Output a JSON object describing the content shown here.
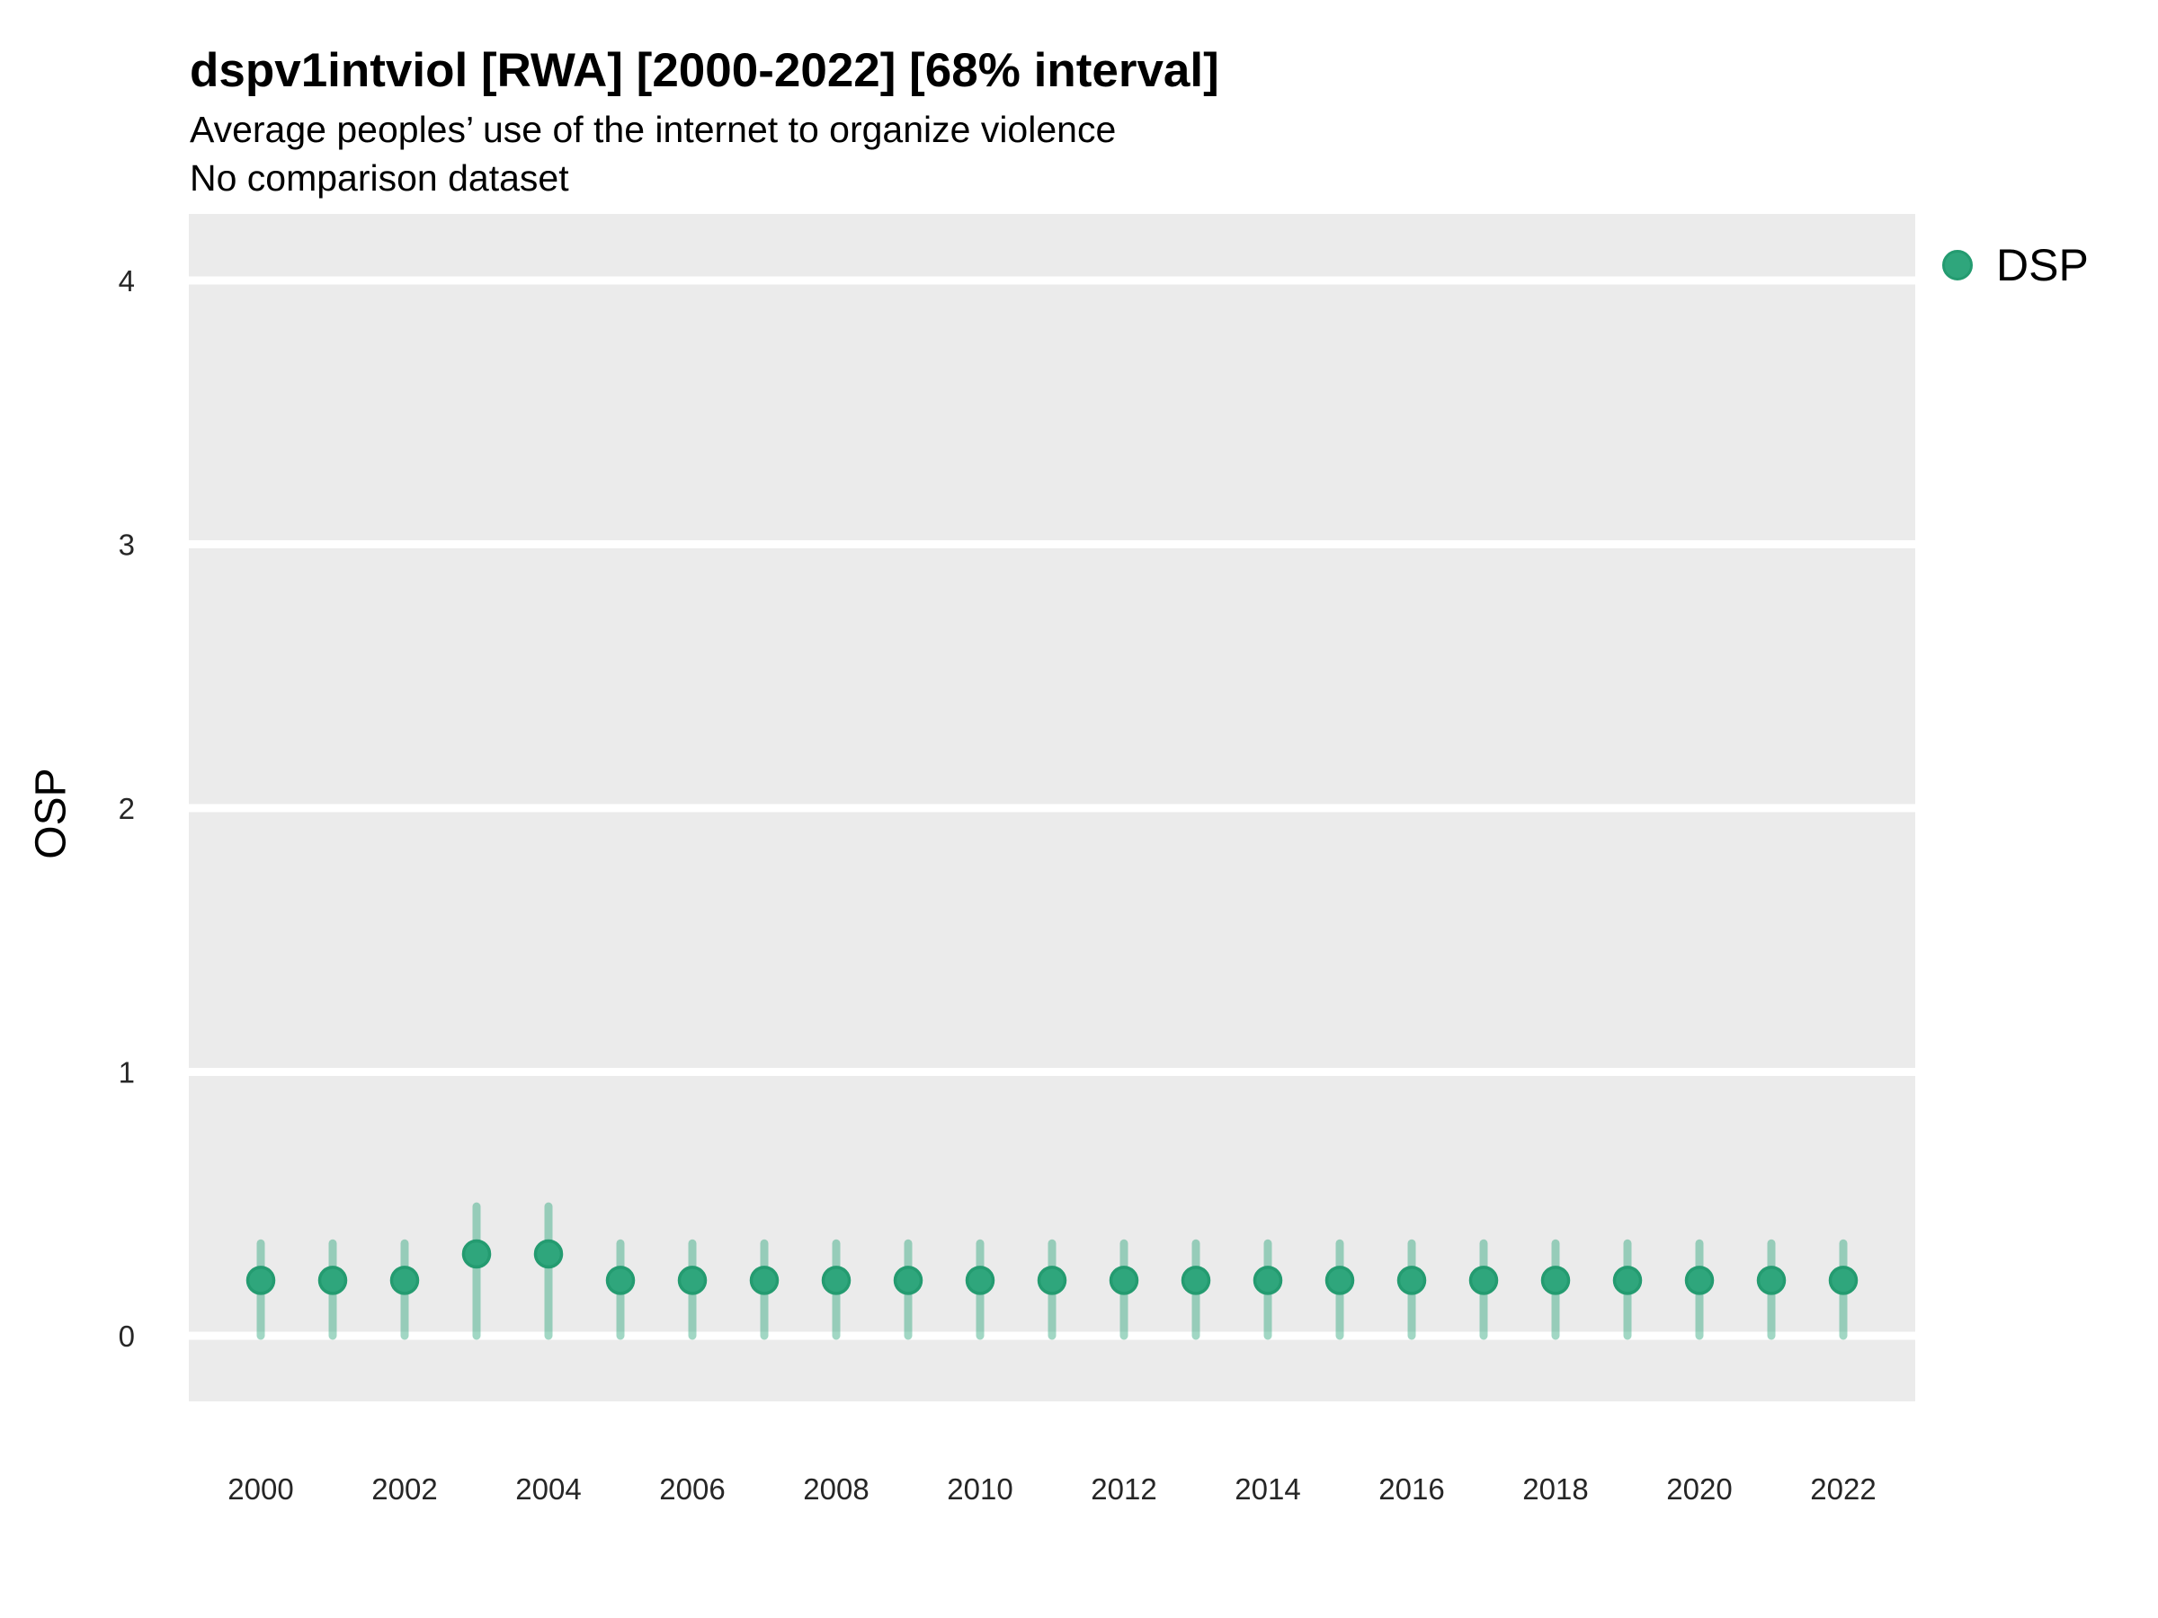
{
  "header": {
    "title": "dspv1intviol [RWA] [2000-2022] [68% interval]",
    "subtitle1": "Average peoples’ use of the internet to organize violence",
    "subtitle2": "No comparison dataset"
  },
  "legend": {
    "position": "right",
    "items": [
      {
        "label": "DSP",
        "color": "#2fa67c"
      }
    ]
  },
  "colors": {
    "point_fill": "#2fa67c",
    "point_stroke": "#249b70",
    "interval_bar": "rgba(47,166,124,0.45)",
    "panel_bg": "#ebebeb",
    "gridline": "#ffffff",
    "axis_text": "#262626",
    "text": "#000000"
  },
  "chart_data": {
    "type": "scatter",
    "subtype": "pointrange",
    "title": "dspv1intviol [RWA] [2000-2022] [68% interval]",
    "subtitle": "Average peoples’ use of the internet to organize violence",
    "note": "No comparison dataset",
    "xlabel": "",
    "ylabel": "OSP",
    "ylim": [
      -0.25,
      4.25
    ],
    "y_ticks": [
      0,
      1,
      2,
      3,
      4
    ],
    "x_ticks": [
      2000,
      2002,
      2004,
      2006,
      2008,
      2010,
      2012,
      2014,
      2016,
      2018,
      2020,
      2022
    ],
    "grid": "major-horizontal-only",
    "legend_position": "right",
    "interval_level": "68%",
    "series": [
      {
        "name": "DSP",
        "x": [
          2000,
          2001,
          2002,
          2003,
          2004,
          2005,
          2006,
          2007,
          2008,
          2009,
          2010,
          2011,
          2012,
          2013,
          2014,
          2015,
          2016,
          2017,
          2018,
          2019,
          2020,
          2021,
          2022
        ],
        "estimate": [
          0.21,
          0.21,
          0.21,
          0.31,
          0.31,
          0.21,
          0.21,
          0.21,
          0.21,
          0.21,
          0.21,
          0.21,
          0.21,
          0.21,
          0.21,
          0.21,
          0.21,
          0.21,
          0.21,
          0.21,
          0.21,
          0.21,
          0.21
        ],
        "lo": [
          0.0,
          0.0,
          0.0,
          0.0,
          0.0,
          0.0,
          0.0,
          0.0,
          0.0,
          0.0,
          0.0,
          0.0,
          0.0,
          0.0,
          0.0,
          0.0,
          0.0,
          0.0,
          0.0,
          0.0,
          0.0,
          0.0,
          0.0
        ],
        "hi": [
          0.35,
          0.35,
          0.35,
          0.49,
          0.49,
          0.35,
          0.35,
          0.35,
          0.35,
          0.35,
          0.35,
          0.35,
          0.35,
          0.35,
          0.35,
          0.35,
          0.35,
          0.35,
          0.35,
          0.35,
          0.35,
          0.35,
          0.35
        ]
      }
    ]
  }
}
